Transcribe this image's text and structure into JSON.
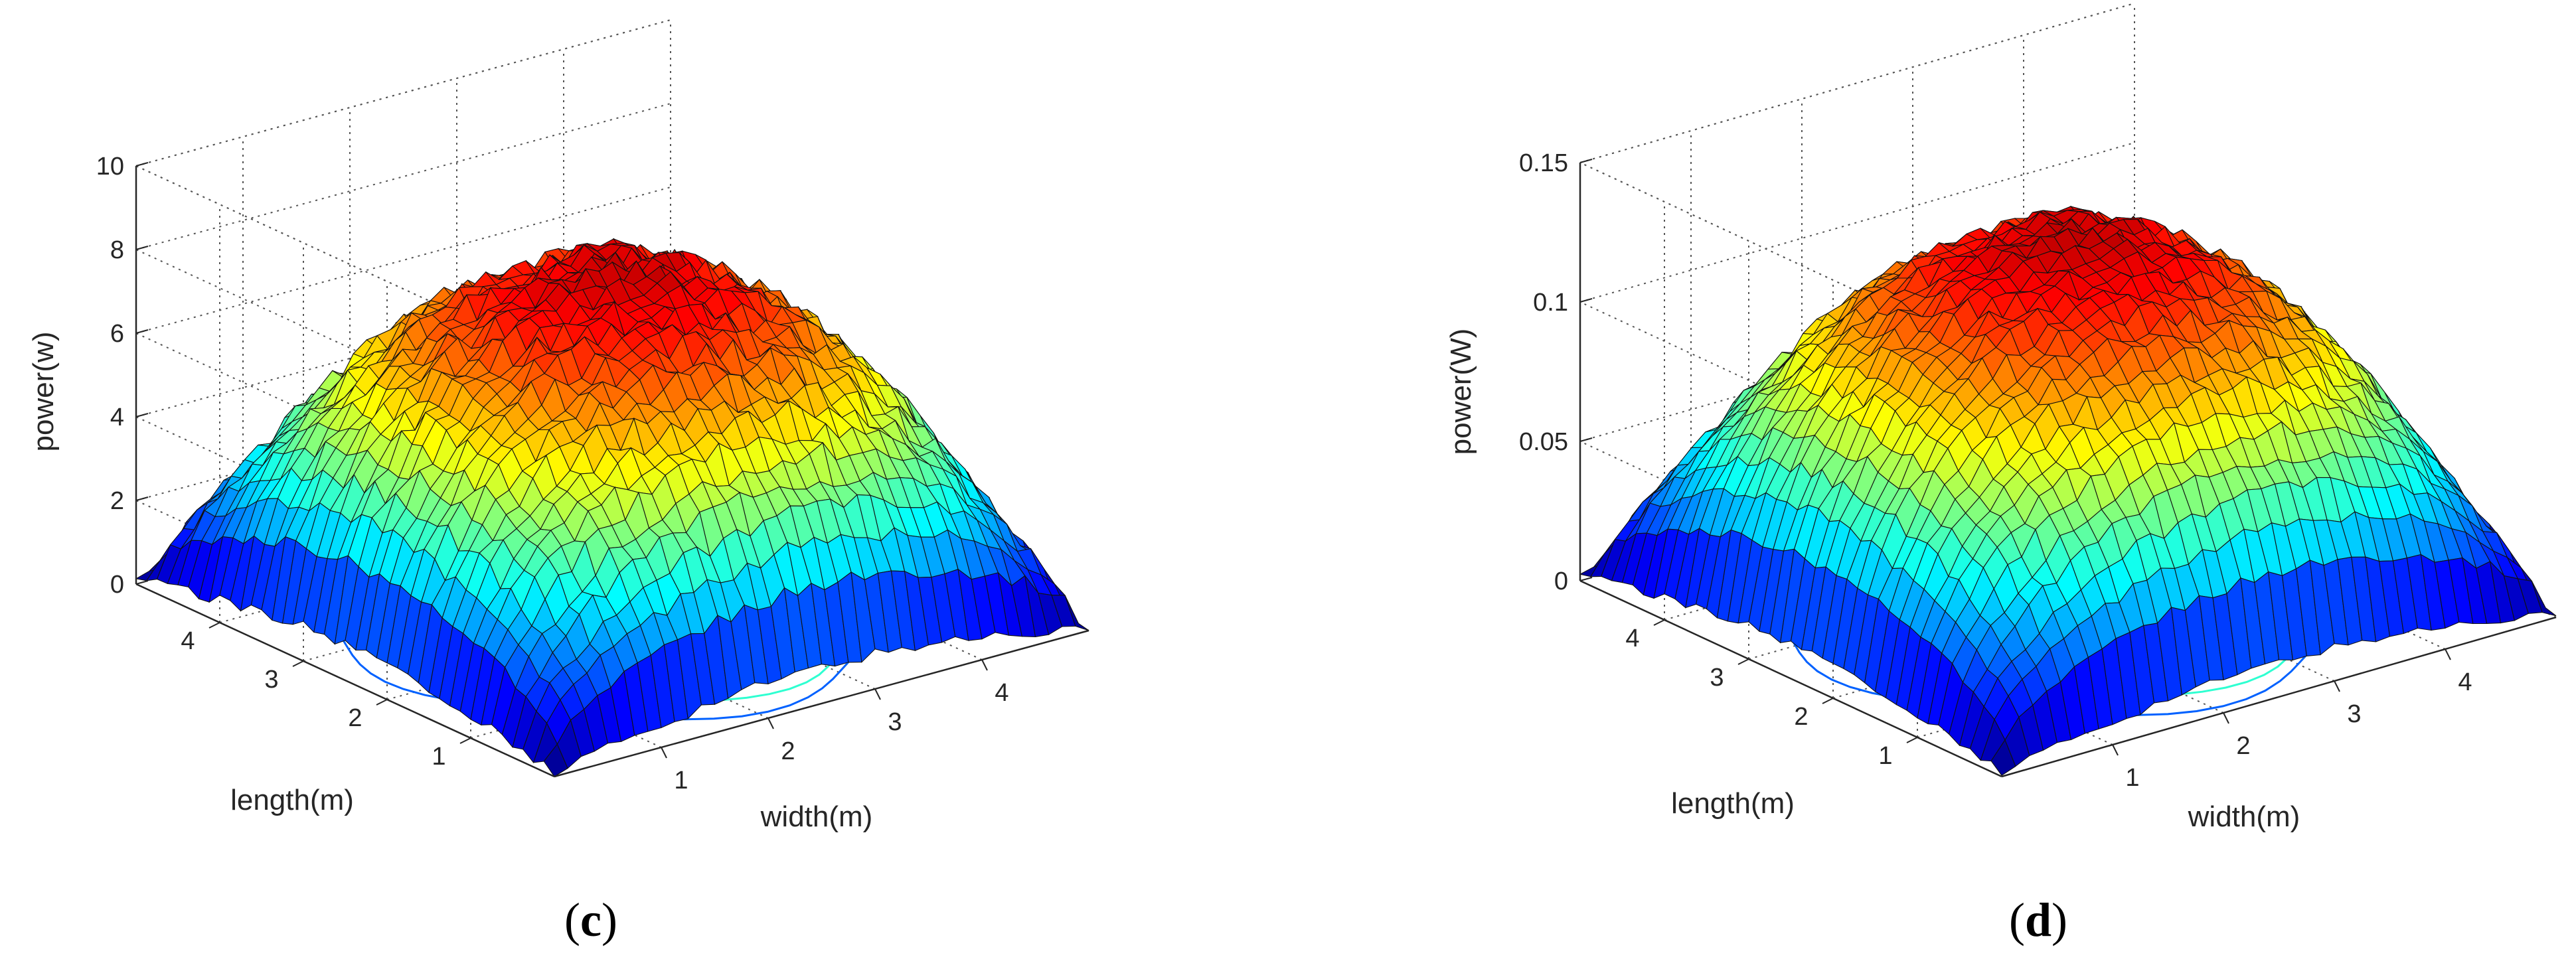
{
  "chart_data": [
    {
      "type": "surface",
      "panel_label": "c",
      "xlabel": "width(m)",
      "ylabel": "length(m)",
      "zlabel": "power(w)",
      "xlim": [
        0,
        5
      ],
      "ylim": [
        0,
        5
      ],
      "zlim": [
        0,
        10
      ],
      "x_ticks": [
        "1",
        "2",
        "3",
        "4"
      ],
      "y_ticks": [
        "1",
        "2",
        "3",
        "4"
      ],
      "z_ticks": [
        "0",
        "2",
        "4",
        "6",
        "8",
        "10"
      ],
      "z_tick_values": [
        0,
        2,
        4,
        6,
        8,
        10
      ],
      "grid": true,
      "colormap": "jet",
      "contour_at_base": true,
      "peak": 8.7,
      "center_value": 8.0,
      "corner_value": 0.1,
      "edge_mid_value": 2.2,
      "roughness": 0.35
    },
    {
      "type": "surface",
      "panel_label": "d",
      "xlabel": "width(m)",
      "ylabel": "length(m)",
      "zlabel": "power(W)",
      "xlim": [
        0,
        5
      ],
      "ylim": [
        0,
        5
      ],
      "zlim": [
        0,
        0.15
      ],
      "x_ticks": [
        "1",
        "2",
        "3",
        "4"
      ],
      "y_ticks": [
        "1",
        "2",
        "3",
        "4"
      ],
      "z_ticks": [
        "0",
        "0.05",
        "0.1",
        "0.15"
      ],
      "z_tick_values": [
        0,
        0.05,
        0.1,
        0.15
      ],
      "grid": true,
      "colormap": "jet",
      "contour_at_base": true,
      "peak": 0.14,
      "center_value": 0.13,
      "corner_value": 0.002,
      "edge_mid_value": 0.03,
      "roughness": 0.004
    }
  ],
  "captions": {
    "c": "c",
    "d": "d"
  },
  "colors": {
    "contour_red": "#cc3311",
    "grid": "#555555",
    "axis": "#262626"
  }
}
